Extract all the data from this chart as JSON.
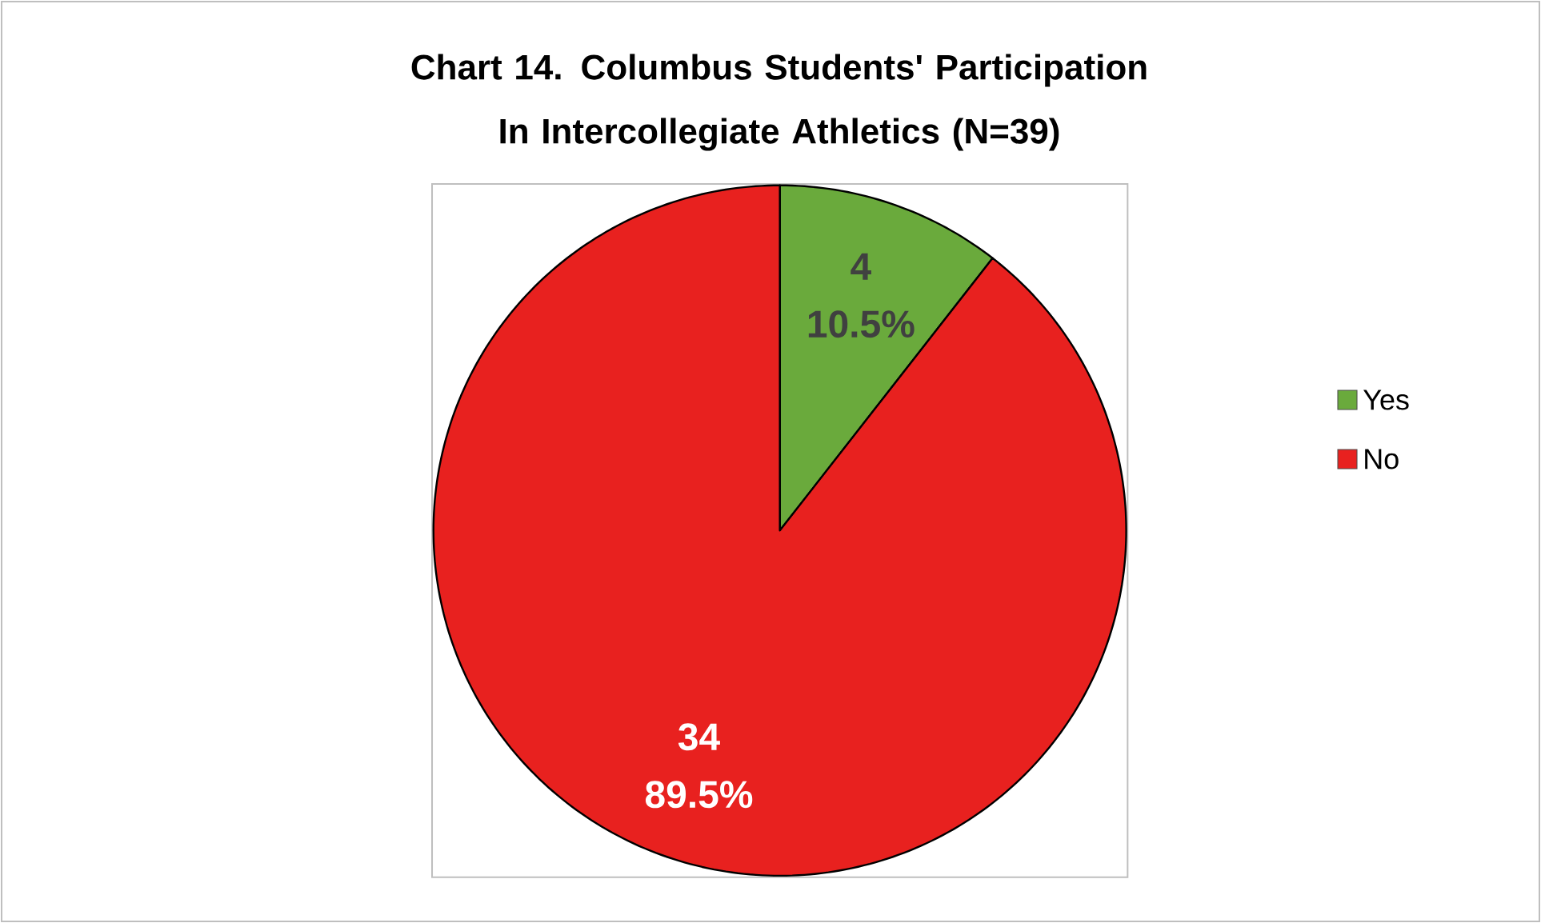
{
  "chart_data": {
    "type": "pie",
    "title": "Chart 14. Columbus Students' Participation In Intercollegiate Athletics (N=39)",
    "categories": [
      "Yes",
      "No"
    ],
    "values": [
      4,
      34
    ],
    "colors": [
      "#6aaa3c",
      "#e8211f"
    ],
    "value_labels": [
      "4 10.5%",
      "34 89.5%"
    ],
    "legend": "right"
  }
}
